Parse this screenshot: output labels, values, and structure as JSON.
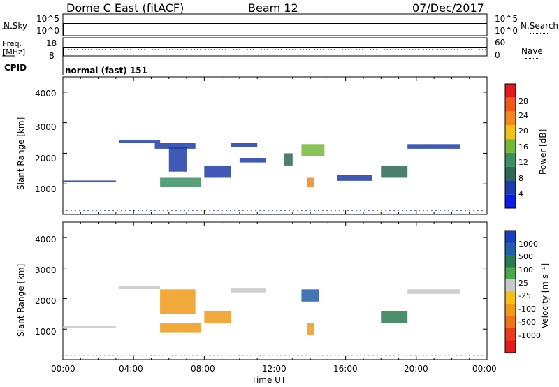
{
  "header": {
    "radar": "Dome C East (fitACF)",
    "beam": "Beam 12",
    "date": "07/Dec/2017"
  },
  "top_panels": {
    "nsky_label": "N.Sky",
    "nsky_ticks": [
      "10^5",
      "10^0"
    ],
    "nsearch_label": "N.Search",
    "nsearch_ticks": [
      "10^5",
      "10^0"
    ],
    "freq_label": "Freq.",
    "freq_unit": "[MHz]",
    "freq_ticks": [
      "18",
      "8"
    ],
    "nave_label": "Nave",
    "nave_ticks": [
      "60",
      "0"
    ],
    "cpid_label": "CPID",
    "cpid_value": "normal (fast) 151"
  },
  "axes": {
    "ylabel": "Slant Range [km]",
    "yticks": [
      "4000",
      "3000",
      "2000",
      "1000"
    ],
    "xticks": [
      "00:00",
      "04:00",
      "08:00",
      "12:00",
      "16:00",
      "20:00",
      "00:00"
    ],
    "xlabel": "Time UT"
  },
  "power_colorbar": {
    "label": "Power [dB]",
    "ticks": [
      "28",
      "24",
      "20",
      "16",
      "12",
      "8",
      "4"
    ],
    "colors": [
      "#0a1fe6",
      "#1d3ca8",
      "#2d6a55",
      "#3b8f63",
      "#76b83a",
      "#f2c21b",
      "#f28a1b",
      "#ef5a1a",
      "#e21c1c"
    ]
  },
  "velocity_colorbar": {
    "label": "Velocity [m s⁻¹]",
    "ticks": [
      "1000",
      "500",
      "100",
      "25",
      "-25",
      "-100",
      "-500",
      "-1000"
    ],
    "colors": [
      "#1a3fc2",
      "#235ea8",
      "#2b7a4f",
      "#4aa84a",
      "#c8c8c8",
      "#f5be1a",
      "#f09a1a",
      "#ef731a",
      "#e63c1a",
      "#e21c1c"
    ]
  },
  "chart_data": {
    "type": "heatmap",
    "x_unit": "hours UT",
    "xlim": [
      0,
      24
    ],
    "ylim": [
      0,
      4500
    ],
    "power_panel": {
      "regions": [
        {
          "x": [
            0.0,
            3.0
          ],
          "y": [
            1050,
            1110
          ],
          "value": 5
        },
        {
          "x": [
            3.2,
            5.5
          ],
          "y": [
            2330,
            2420
          ],
          "value": 6
        },
        {
          "x": [
            5.2,
            7.5
          ],
          "y": [
            2150,
            2350
          ],
          "value": 7
        },
        {
          "x": [
            5.5,
            7.8
          ],
          "y": [
            900,
            1200
          ],
          "value": 12
        },
        {
          "x": [
            6.0,
            7.0
          ],
          "y": [
            1400,
            2200
          ],
          "value": 6
        },
        {
          "x": [
            8.0,
            9.5
          ],
          "y": [
            1200,
            1600
          ],
          "value": 6
        },
        {
          "x": [
            9.5,
            11.0
          ],
          "y": [
            2200,
            2350
          ],
          "value": 7
        },
        {
          "x": [
            10.0,
            11.5
          ],
          "y": [
            1700,
            1850
          ],
          "value": 6
        },
        {
          "x": [
            12.5,
            13.0
          ],
          "y": [
            1600,
            2000
          ],
          "value": 10
        },
        {
          "x": [
            13.5,
            14.8
          ],
          "y": [
            1900,
            2300
          ],
          "value": 18
        },
        {
          "x": [
            13.8,
            14.2
          ],
          "y": [
            900,
            1200
          ],
          "value": 24
        },
        {
          "x": [
            15.5,
            17.5
          ],
          "y": [
            1100,
            1300
          ],
          "value": 6
        },
        {
          "x": [
            18.0,
            19.5
          ],
          "y": [
            1200,
            1600
          ],
          "value": 8
        },
        {
          "x": [
            19.5,
            22.5
          ],
          "y": [
            2150,
            2300
          ],
          "value": 6
        }
      ]
    },
    "velocity_panel": {
      "regions": [
        {
          "x": [
            0.0,
            3.0
          ],
          "y": [
            1050,
            1110
          ],
          "value": 0
        },
        {
          "x": [
            3.2,
            5.5
          ],
          "y": [
            2330,
            2420
          ],
          "value": 0
        },
        {
          "x": [
            5.5,
            7.8
          ],
          "y": [
            900,
            1200
          ],
          "value": -300
        },
        {
          "x": [
            5.5,
            7.5
          ],
          "y": [
            1500,
            2300
          ],
          "value": -200
        },
        {
          "x": [
            8.0,
            9.5
          ],
          "y": [
            1200,
            1600
          ],
          "value": -300
        },
        {
          "x": [
            9.5,
            11.5
          ],
          "y": [
            2200,
            2350
          ],
          "value": 0
        },
        {
          "x": [
            13.5,
            14.5
          ],
          "y": [
            1900,
            2300
          ],
          "value": 600
        },
        {
          "x": [
            13.8,
            14.2
          ],
          "y": [
            800,
            1200
          ],
          "value": -120
        },
        {
          "x": [
            18.0,
            19.5
          ],
          "y": [
            1200,
            1600
          ],
          "value": 300
        },
        {
          "x": [
            19.5,
            22.5
          ],
          "y": [
            2150,
            2300
          ],
          "value": 0
        }
      ]
    }
  }
}
